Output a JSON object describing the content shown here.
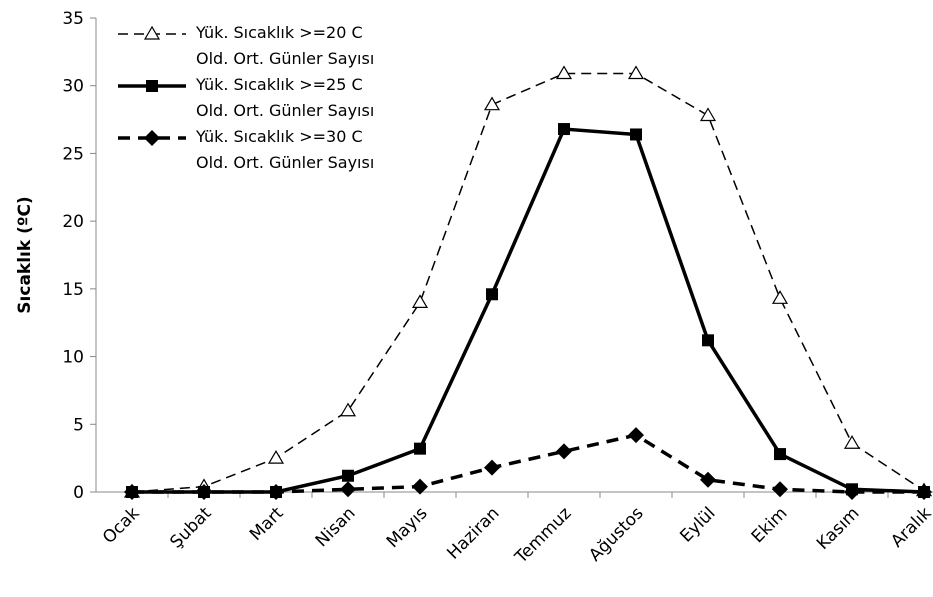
{
  "chart_data": {
    "type": "line",
    "y_label": "Sıcaklık (ºC)",
    "categories": [
      "Ocak",
      "Şubat",
      "Mart",
      "Nisan",
      "Mayıs",
      "Haziran",
      "Temmuz",
      "Ağustos",
      "Eylül",
      "Ekim",
      "Kasım",
      "Aralık"
    ],
    "series": [
      {
        "name": "Yük. Sıcaklık >=20 C\nOld. Ort. Günler Sayısı",
        "color": "#000000",
        "marker": "triangle",
        "dash": "dashed",
        "width": 1.5,
        "values": [
          0,
          0.4,
          2.5,
          6,
          14,
          28.6,
          30.9,
          30.9,
          27.8,
          14.3,
          3.6,
          0.1
        ]
      },
      {
        "name": "Yük. Sıcaklık >=25 C\nOld. Ort. Günler Sayısı",
        "color": "#000000",
        "marker": "square",
        "dash": "solid",
        "width": 3.5,
        "values": [
          0,
          0,
          0,
          1.2,
          3.2,
          14.6,
          26.8,
          26.4,
          11.2,
          2.8,
          0.2,
          0
        ]
      },
      {
        "name": "Yük. Sıcaklık >=30 C\nOld. Ort. Günler Sayısı",
        "color": "#000000",
        "marker": "diamond",
        "dash": "dashed",
        "width": 3.5,
        "values": [
          0,
          0,
          0,
          0.2,
          0.4,
          1.8,
          3.0,
          4.2,
          0.9,
          0.2,
          0,
          0
        ]
      }
    ],
    "ylim": [
      0,
      35
    ],
    "yticks": [
      0,
      5,
      10,
      15,
      20,
      25,
      30,
      35
    ],
    "grid": false
  }
}
